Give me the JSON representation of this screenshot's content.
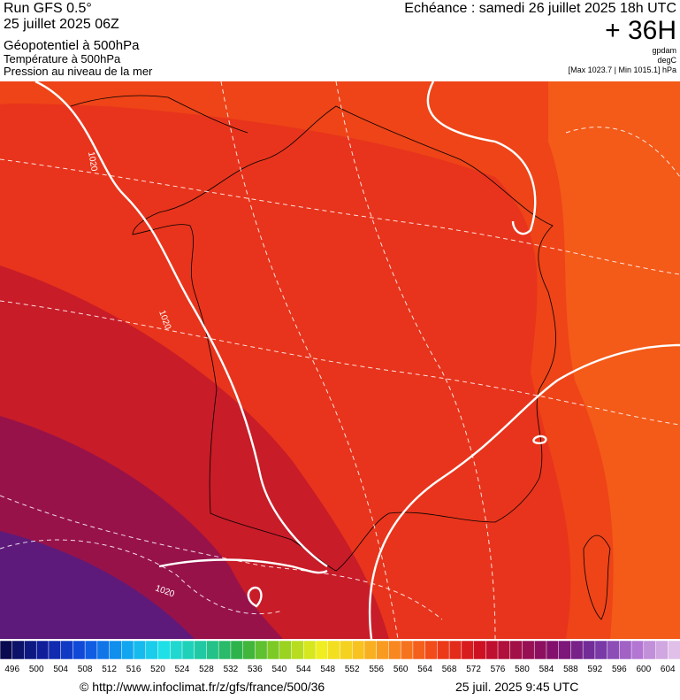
{
  "header": {
    "run": "Run GFS 0.5°",
    "run_date": "25 juillet 2025 06Z",
    "field_1": "Géopotentiel à 500hPa",
    "field_2": "Température à 500hPa",
    "field_3": "Pression au niveau de la mer",
    "valid_time": "Echéance : samedi 26 juillet 2025 18h UTC",
    "lead": "+ 36H",
    "unit_1": "gpdam",
    "unit_2": "degC",
    "pressure_range": "[Max 1023.7 | Min 1015.1] hPa"
  },
  "map": {
    "contour_labels": [
      1020,
      1020,
      1020
    ]
  },
  "colorbar": {
    "labels": [
      496,
      500,
      504,
      508,
      512,
      516,
      520,
      524,
      528,
      532,
      536,
      540,
      544,
      548,
      552,
      556,
      560,
      564,
      568,
      572,
      576,
      580,
      584,
      588,
      592,
      596,
      600,
      604
    ],
    "colors": [
      "#0a0a50",
      "#1020a0",
      "#1050e0",
      "#10a0f0",
      "#20e0e8",
      "#20c8a0",
      "#30b040",
      "#90d020",
      "#f0f020",
      "#f8c020",
      "#f88020",
      "#f04018",
      "#d01020",
      "#a01048",
      "#801070",
      "#7030a0",
      "#b070d0",
      "#e0c0e8"
    ]
  },
  "footer": {
    "source": "© http://www.infoclimat.fr/z/gfs/france/500/36",
    "generated": "25 juil. 2025  9:45 UTC"
  }
}
